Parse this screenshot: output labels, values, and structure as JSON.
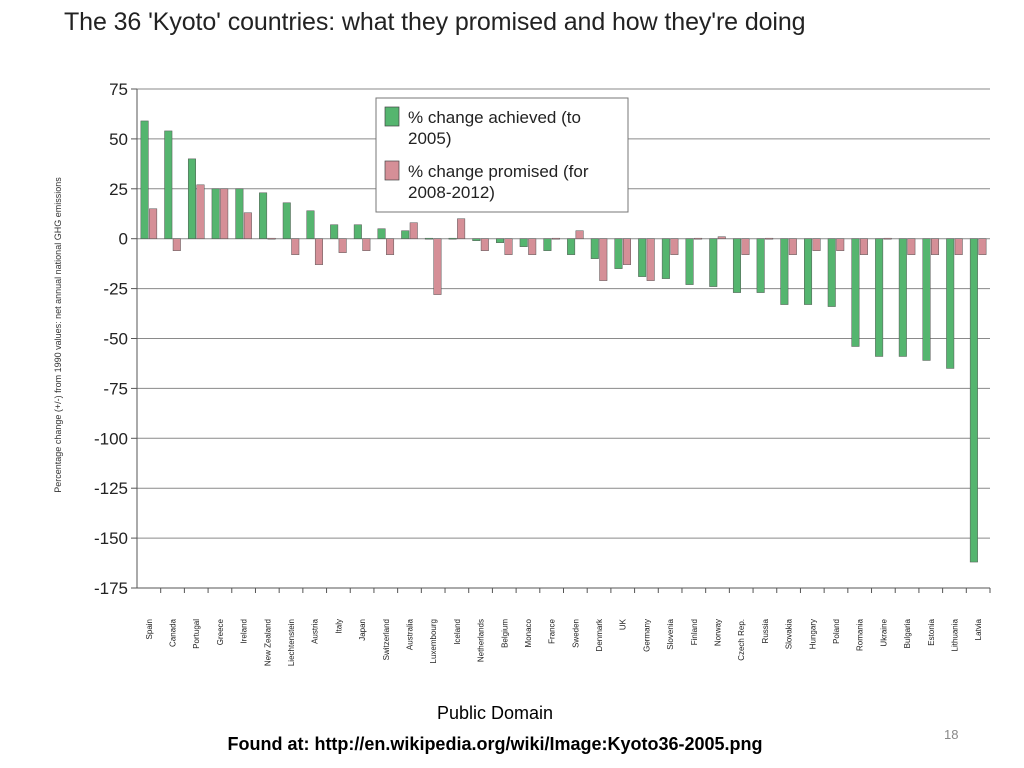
{
  "slide": {
    "title": "The 36 'Kyoto' countries: what they promised and how they're doing",
    "credit": "Public Domain",
    "source": "Found at: http://en.wikipedia.org/wiki/Image:Kyoto36-2005.png",
    "page_number": "18"
  },
  "chart_data": {
    "type": "bar",
    "title": "The 36 'Kyoto' countries: what they promised and how they're doing",
    "xlabel": "",
    "ylabel": "Percentage change (+/-) from 1990 values: net annual national GHG emissions",
    "ylim": [
      -175,
      75
    ],
    "yticks": [
      75,
      50,
      25,
      0,
      -25,
      -50,
      -75,
      -100,
      -125,
      -150,
      -175
    ],
    "grid": true,
    "legend_position": "top-center",
    "categories": [
      "Spain",
      "Canada",
      "Portugal",
      "Greece",
      "Ireland",
      "New Zealand",
      "Liechtenstein",
      "Austria",
      "Italy",
      "Japan",
      "Switzerland",
      "Australia",
      "Luxembourg",
      "Iceland",
      "Netherlands",
      "Belgium",
      "Monaco",
      "France",
      "Sweden",
      "Denmark",
      "UK",
      "Germany",
      "Slovenia",
      "Finland",
      "Norway",
      "Czech Rep.",
      "Russia",
      "Slovakia",
      "Hungary",
      "Poland",
      "Romania",
      "Ukraine",
      "Bulgaria",
      "Estonia",
      "Lithuania",
      "Latvia"
    ],
    "series": [
      {
        "name": "% change achieved (to 2005)",
        "color": "#55b56f",
        "values": [
          59,
          54,
          40,
          25,
          25,
          23,
          18,
          14,
          7,
          7,
          5,
          4,
          0,
          0,
          -1,
          -2,
          -4,
          -6,
          -8,
          -10,
          -15,
          -19,
          -20,
          -23,
          -24,
          -27,
          -27,
          -33,
          -33,
          -34,
          -54,
          -59,
          -59,
          -61,
          -65,
          -162
        ]
      },
      {
        "name": "% change promised (for 2008-2012)",
        "color": "#d58f97",
        "values": [
          15,
          -6,
          27,
          25,
          13,
          0,
          -8,
          -13,
          -7,
          -6,
          -8,
          8,
          -28,
          10,
          -6,
          -8,
          -8,
          0,
          4,
          -21,
          -13,
          -21,
          -8,
          0,
          1,
          -8,
          0,
          -8,
          -6,
          -6,
          -8,
          0,
          -8,
          -8,
          -8,
          -8
        ]
      }
    ],
    "legend_labels": [
      [
        "% change achieved (to",
        "2005)"
      ],
      [
        "% change promised (for",
        "2008-2012)"
      ]
    ]
  }
}
